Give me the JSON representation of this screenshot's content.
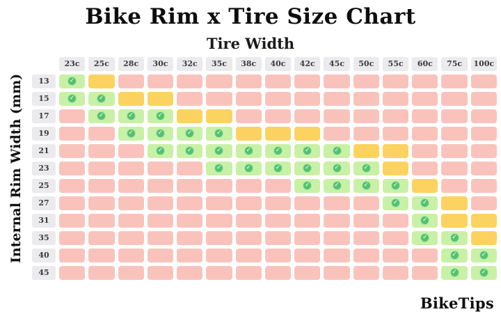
{
  "title": "Bike Rim x Tire Size Chart",
  "axis": {
    "x_title": "Tire Width",
    "y_title": "Internal Rim Width (mm)"
  },
  "branding": "BikeTips",
  "icons": {
    "check": "✓"
  },
  "colors": {
    "compatible_green": "#c9f1a5",
    "caution_yellow": "#fcd360",
    "incompatible_pink": "#f9c3bc",
    "check_circle_green": "#53c36b",
    "label_background": "#ebebee"
  },
  "chart_data": {
    "type": "heatmap",
    "title": "Bike Rim x Tire Size Chart",
    "xlabel": "Tire Width",
    "ylabel": "Internal Rim Width (mm)",
    "columns": [
      "23c",
      "25c",
      "28c",
      "30c",
      "32c",
      "35c",
      "38c",
      "40c",
      "42c",
      "45c",
      "50c",
      "55c",
      "60c",
      "75c",
      "100c"
    ],
    "rows": [
      "13",
      "15",
      "17",
      "19",
      "21",
      "23",
      "25",
      "27",
      "31",
      "35",
      "40",
      "45"
    ],
    "cell_legend": {
      "G": "compatible (green with check mark)",
      "Y": "caution (yellow)",
      "R": "incompatible (pink)"
    },
    "cells": [
      [
        "G",
        "Y",
        "R",
        "R",
        "R",
        "R",
        "R",
        "R",
        "R",
        "R",
        "R",
        "R",
        "R",
        "R",
        "R"
      ],
      [
        "G",
        "G",
        "Y",
        "Y",
        "R",
        "R",
        "R",
        "R",
        "R",
        "R",
        "R",
        "R",
        "R",
        "R",
        "R"
      ],
      [
        "R",
        "G",
        "G",
        "G",
        "Y",
        "Y",
        "R",
        "R",
        "R",
        "R",
        "R",
        "R",
        "R",
        "R",
        "R"
      ],
      [
        "R",
        "R",
        "G",
        "G",
        "G",
        "G",
        "Y",
        "Y",
        "Y",
        "R",
        "R",
        "R",
        "R",
        "R",
        "R"
      ],
      [
        "R",
        "R",
        "R",
        "G",
        "G",
        "G",
        "G",
        "G",
        "G",
        "G",
        "Y",
        "Y",
        "R",
        "R",
        "R"
      ],
      [
        "R",
        "R",
        "R",
        "R",
        "R",
        "G",
        "G",
        "G",
        "G",
        "G",
        "G",
        "Y",
        "R",
        "R",
        "R"
      ],
      [
        "R",
        "R",
        "R",
        "R",
        "R",
        "R",
        "R",
        "R",
        "G",
        "G",
        "G",
        "G",
        "Y",
        "R",
        "R"
      ],
      [
        "R",
        "R",
        "R",
        "R",
        "R",
        "R",
        "R",
        "R",
        "R",
        "R",
        "R",
        "G",
        "G",
        "Y",
        "R"
      ],
      [
        "R",
        "R",
        "R",
        "R",
        "R",
        "R",
        "R",
        "R",
        "R",
        "R",
        "R",
        "R",
        "G",
        "Y",
        "Y"
      ],
      [
        "R",
        "R",
        "R",
        "R",
        "R",
        "R",
        "R",
        "R",
        "R",
        "R",
        "R",
        "R",
        "G",
        "G",
        "Y"
      ],
      [
        "R",
        "R",
        "R",
        "R",
        "R",
        "R",
        "R",
        "R",
        "R",
        "R",
        "R",
        "R",
        "R",
        "G",
        "G"
      ],
      [
        "R",
        "R",
        "R",
        "R",
        "R",
        "R",
        "R",
        "R",
        "R",
        "R",
        "R",
        "R",
        "R",
        "G",
        "G"
      ]
    ]
  }
}
